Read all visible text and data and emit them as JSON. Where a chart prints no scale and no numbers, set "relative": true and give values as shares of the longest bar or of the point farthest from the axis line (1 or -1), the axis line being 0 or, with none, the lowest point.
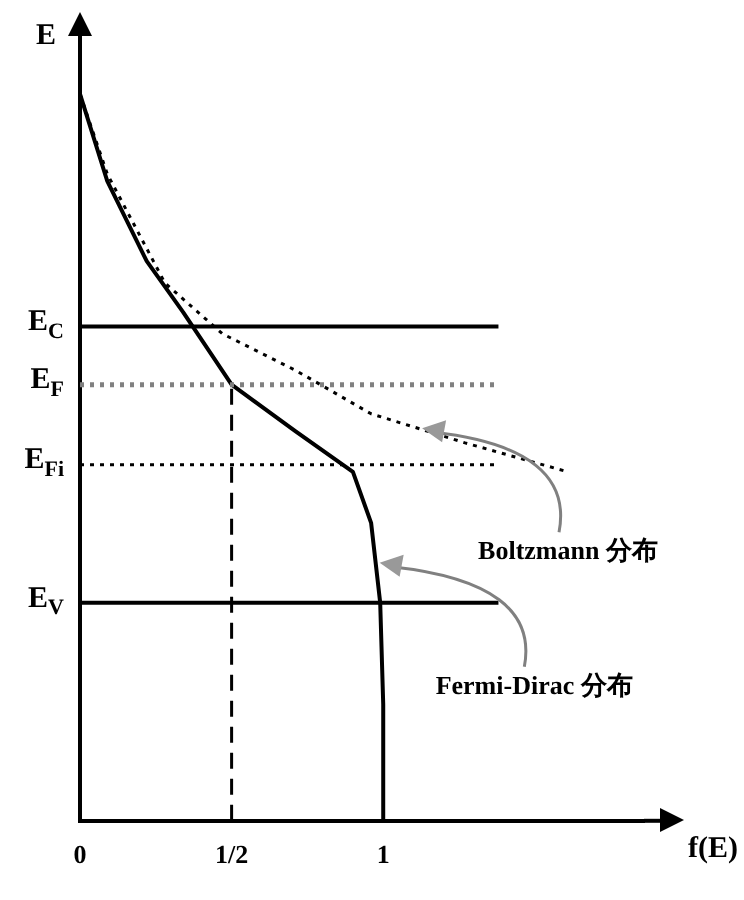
{
  "chart_data": {
    "type": "line",
    "relative": true,
    "xlabel": "f(E)",
    "ylabel": "E",
    "xlim": [
      0,
      1.86
    ],
    "xticks": [
      0,
      {
        "value": 0.5,
        "label": "1/2"
      },
      1
    ],
    "grid": false,
    "legend": false,
    "marker": "none",
    "series": [
      {
        "color": "#000000",
        "line_style": "solid",
        "x": [
          0,
          0.09,
          0.22,
          0.34,
          0.5,
          0.71,
          0.9,
          0.96,
          0.99,
          1,
          1
        ],
        "values": [
          1,
          0.88,
          0.77,
          0.7,
          0.6,
          0.536,
          0.48,
          0.41,
          0.3,
          0.16,
          0
        ]
      },
      {
        "color": "#000000",
        "line_style": "dotted",
        "x": [
          0,
          0.09,
          0.28,
          0.47,
          0.71,
          0.96,
          1.27,
          1.61
        ],
        "values": [
          1,
          0.89,
          0.74,
          0.67,
          0.62,
          0.56,
          0.52,
          0.48
        ]
      },
      {
        "color": "#000000",
        "line_style": "dashed",
        "x": [
          0.5,
          0.5
        ],
        "values": [
          0,
          0.6
        ]
      }
    ],
    "ref_lines": [
      {
        "axis": "y",
        "value": 0.68,
        "label": "E$_{C}$",
        "color": "#000000",
        "line_style": "solid"
      },
      {
        "axis": "y",
        "value": 0.6,
        "label": "E$_{F}$",
        "color": "#808080",
        "line_style": "dotted"
      },
      {
        "axis": "y",
        "value": 0.49,
        "label": "E$_{Fi}$",
        "color": "#000000",
        "line_style": "dotted"
      },
      {
        "axis": "y",
        "value": 0.3,
        "label": "E$_{V}$",
        "color": "#000000",
        "line_style": "solid"
      }
    ],
    "annotations": [
      "Boltzmann 分布",
      "Fermi-Dirac 分布"
    ]
  }
}
